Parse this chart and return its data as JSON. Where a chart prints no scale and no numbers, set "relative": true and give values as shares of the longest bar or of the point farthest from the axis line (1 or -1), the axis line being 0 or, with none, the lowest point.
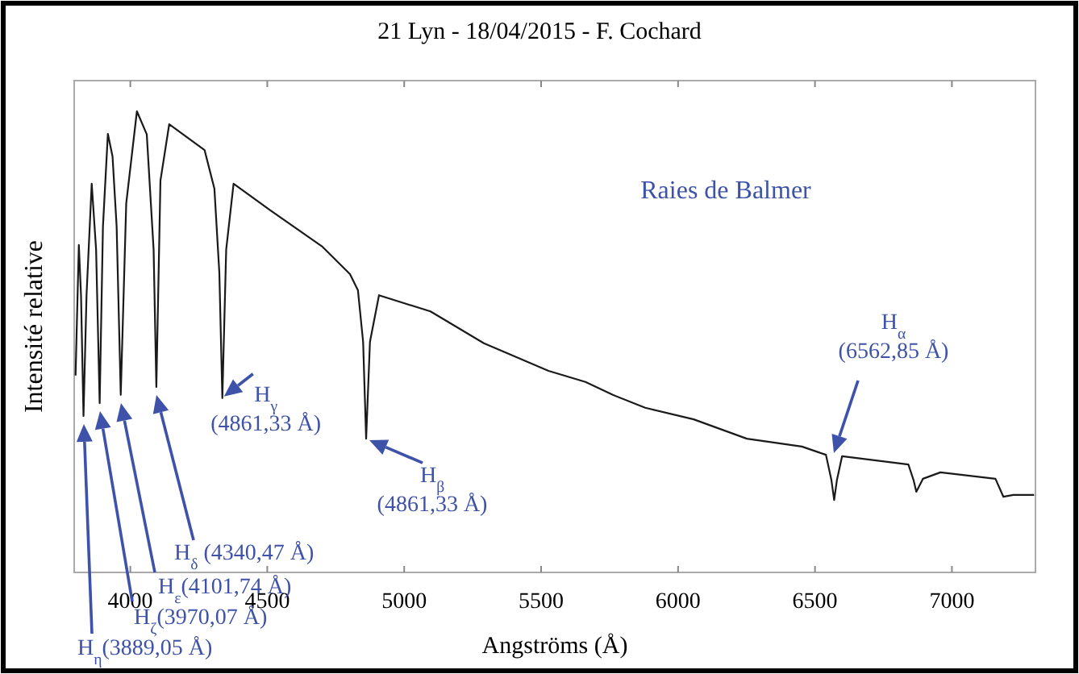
{
  "chart_data": {
    "type": "line",
    "title": "21 Lyn - 18/04/2015 - F. Cochard",
    "xlabel": "Angströms (Å)",
    "ylabel": "Intensité relative",
    "relative": true,
    "xlim": [
      3795,
      7305
    ],
    "xticks": [
      4000,
      4500,
      5000,
      5500,
      6000,
      6500,
      7000
    ],
    "grid": false,
    "marker": "none",
    "line_style": "solid",
    "series": [
      {
        "color": "#1a1a1a",
        "x": [
          3800,
          3812,
          3820,
          3829,
          3840,
          3859,
          3875,
          3888,
          3900,
          3918,
          3935,
          3950,
          3965,
          3985,
          4024,
          4060,
          4085,
          4095,
          4110,
          4142,
          4271,
          4307,
          4325,
          4336,
          4350,
          4377,
          4507,
          4702,
          4802,
          4831,
          4850,
          4861,
          4875,
          4908,
          5096,
          5291,
          5527,
          5662,
          5762,
          5880,
          6057,
          6251,
          6452,
          6540,
          6560,
          6570,
          6580,
          6599,
          6841,
          6860,
          6870,
          6894,
          6958,
          7159,
          7188,
          7224,
          7300
        ],
        "values": [
          0.427,
          0.71,
          0.6,
          0.339,
          0.6,
          0.843,
          0.7,
          0.367,
          0.75,
          0.951,
          0.902,
          0.75,
          0.385,
          0.8,
          1.0,
          0.95,
          0.7,
          0.402,
          0.85,
          0.972,
          0.916,
          0.832,
          0.65,
          0.378,
          0.7,
          0.843,
          0.787,
          0.706,
          0.647,
          0.612,
          0.5,
          0.29,
          0.5,
          0.601,
          0.566,
          0.497,
          0.437,
          0.413,
          0.385,
          0.357,
          0.332,
          0.29,
          0.273,
          0.255,
          0.2,
          0.157,
          0.2,
          0.252,
          0.234,
          0.2,
          0.175,
          0.203,
          0.217,
          0.203,
          0.164,
          0.168,
          0.168
        ]
      }
    ],
    "annotations": [
      "H$_{η}$(3889,05 Å)",
      "H$_{ζ}$(3970,07 Å)",
      "H$_{ε}$(4101,74 Å)",
      "H$_{δ}$ (4340,47 Å)",
      {
        "text": "H$_{γ}$\n(4861,33 Å)",
        "x": 4336,
        "y": 0.378
      },
      {
        "text": "H$_{β}$\n(4861,33 Å)",
        "x": 4861,
        "y": 0.29
      },
      "H$_{α}$\n(6562,85 Å)",
      "Raies de Balmer"
    ]
  }
}
